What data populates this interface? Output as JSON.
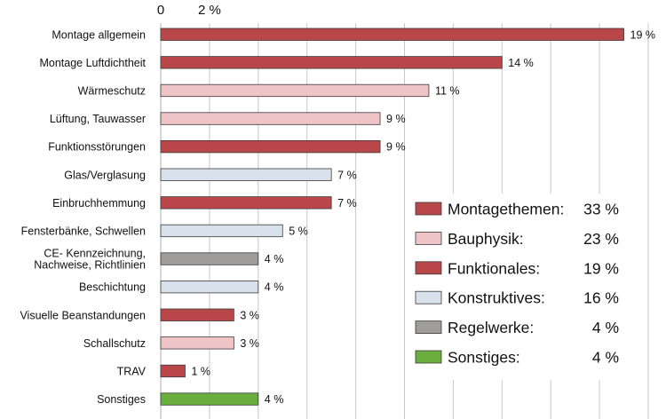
{
  "chart_data": {
    "type": "bar",
    "orientation": "horizontal",
    "x_unit": "%",
    "xlim": [
      0,
      20
    ],
    "axis_ticks": [
      "0",
      "2 %"
    ],
    "grid": true,
    "categories": [
      [
        "Montage allgemein"
      ],
      [
        "Montage Luftdichtheit"
      ],
      [
        "Wärmeschutz"
      ],
      [
        "Lüftung, Tauwasser"
      ],
      [
        "Funktionsstörungen"
      ],
      [
        "Glas/Verglasung"
      ],
      [
        "Einbruchhemmung"
      ],
      [
        "Fensterbänke, Schwellen"
      ],
      [
        "CE- Kennzeichnung,",
        "Nachweise, Richtlinien"
      ],
      [
        "Beschichtung"
      ],
      [
        "Visuelle Beanstandungen"
      ],
      [
        "Schallschutz"
      ],
      [
        "TRAV"
      ],
      [
        "Sonstiges"
      ]
    ],
    "values": [
      19,
      14,
      11,
      9,
      9,
      7,
      7,
      5,
      4,
      4,
      3,
      3,
      1,
      4
    ],
    "value_labels": [
      "19 %",
      "14 %",
      "11 %",
      "9 %",
      "9 %",
      "7 %",
      "7 %",
      "5 %",
      "4 %",
      "4 %",
      "3 %",
      "3 %",
      "1 %",
      "4 %"
    ],
    "groups": [
      "montage",
      "montage",
      "bauphysik",
      "bauphysik",
      "funktionales",
      "konstruktives",
      "funktionales",
      "konstruktives",
      "regelwerke",
      "konstruktives",
      "funktionales",
      "bauphysik",
      "funktionales",
      "sonstiges"
    ],
    "group_colors": {
      "montage": "#b9474a",
      "bauphysik": "#efc4c7",
      "funktionales": "#b9474a",
      "konstruktives": "#d9e2ec",
      "regelwerke": "#9f9c9c",
      "sonstiges": "#6aaf3d"
    },
    "legend_position": "bottom-right",
    "legend": [
      {
        "group": "montage",
        "label": "Montagethemen:",
        "value": "33 %"
      },
      {
        "group": "bauphysik",
        "label": "Bauphysik:",
        "value": "23 %"
      },
      {
        "group": "funktionales",
        "label": "Funktionales:",
        "value": "19 %"
      },
      {
        "group": "konstruktives",
        "label": "Konstruktives:",
        "value": "16 %"
      },
      {
        "group": "regelwerke",
        "label": "Regelwerke:",
        "value": "4 %"
      },
      {
        "group": "sonstiges",
        "label": "Sonstiges:",
        "value": "4 %"
      }
    ]
  }
}
